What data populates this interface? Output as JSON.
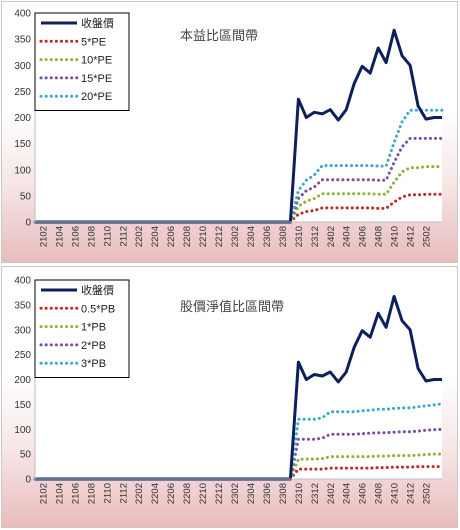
{
  "charts": [
    {
      "title": "本益比區間帶",
      "type": "line",
      "ylim": [
        0,
        400
      ],
      "yticks": [
        0,
        50,
        100,
        150,
        200,
        250,
        300,
        350,
        400
      ],
      "xticks": [
        "2102",
        "2104",
        "2106",
        "2108",
        "2110",
        "2112",
        "2202",
        "2204",
        "2206",
        "2208",
        "2210",
        "2212",
        "2302",
        "2304",
        "2306",
        "2308",
        "2310",
        "2312",
        "2402",
        "2404",
        "2406",
        "2408",
        "2410",
        "2412",
        "2502"
      ],
      "x": [
        "2101",
        "2102",
        "2103",
        "2104",
        "2105",
        "2106",
        "2107",
        "2108",
        "2109",
        "2110",
        "2111",
        "2112",
        "2201",
        "2202",
        "2203",
        "2204",
        "2205",
        "2206",
        "2207",
        "2208",
        "2209",
        "2210",
        "2211",
        "2212",
        "2301",
        "2302",
        "2303",
        "2304",
        "2305",
        "2306",
        "2307",
        "2308",
        "2309",
        "2310",
        "2311",
        "2312",
        "2401",
        "2402",
        "2403",
        "2404",
        "2405",
        "2406",
        "2407",
        "2408",
        "2409",
        "2410",
        "2411",
        "2412",
        "2501",
        "2502",
        "2503",
        "2504"
      ],
      "series": [
        {
          "name": "收盤價",
          "color": "#0d1f5c",
          "style": "solid",
          "values": [
            0,
            0,
            0,
            0,
            0,
            0,
            0,
            0,
            0,
            0,
            0,
            0,
            0,
            0,
            0,
            0,
            0,
            0,
            0,
            0,
            0,
            0,
            0,
            0,
            0,
            0,
            0,
            0,
            0,
            0,
            0,
            0,
            0,
            235,
            200,
            210,
            207,
            215,
            195,
            215,
            265,
            298,
            285,
            333,
            305,
            367,
            318,
            300,
            222,
            197,
            200,
            200
          ]
        },
        {
          "name": "5*PE",
          "color": "#c0282c",
          "style": "dotted",
          "values": [
            0,
            0,
            0,
            0,
            0,
            0,
            0,
            0,
            0,
            0,
            0,
            0,
            0,
            0,
            0,
            0,
            0,
            0,
            0,
            0,
            0,
            0,
            0,
            0,
            0,
            0,
            0,
            0,
            0,
            0,
            0,
            0,
            0,
            15,
            20,
            22,
            27,
            27,
            27,
            27,
            27,
            27,
            27,
            26,
            26,
            38,
            48,
            52,
            52,
            53,
            53,
            53
          ]
        },
        {
          "name": "10*PE",
          "color": "#8cb43c",
          "style": "dotted",
          "values": [
            0,
            0,
            0,
            0,
            0,
            0,
            0,
            0,
            0,
            0,
            0,
            0,
            0,
            0,
            0,
            0,
            0,
            0,
            0,
            0,
            0,
            0,
            0,
            0,
            0,
            0,
            0,
            0,
            0,
            0,
            0,
            0,
            0,
            30,
            40,
            45,
            54,
            54,
            54,
            54,
            54,
            54,
            54,
            53,
            53,
            76,
            96,
            104,
            104,
            106,
            106,
            106
          ]
        },
        {
          "name": "15*PE",
          "color": "#7a4ea0",
          "style": "dotted",
          "values": [
            0,
            0,
            0,
            0,
            0,
            0,
            0,
            0,
            0,
            0,
            0,
            0,
            0,
            0,
            0,
            0,
            0,
            0,
            0,
            0,
            0,
            0,
            0,
            0,
            0,
            0,
            0,
            0,
            0,
            0,
            0,
            0,
            0,
            45,
            60,
            67,
            81,
            81,
            81,
            81,
            81,
            81,
            81,
            80,
            80,
            114,
            144,
            160,
            160,
            160,
            160,
            160
          ]
        },
        {
          "name": "20*PE",
          "color": "#3aa8c8",
          "style": "dotted",
          "values": [
            0,
            0,
            0,
            0,
            0,
            0,
            0,
            0,
            0,
            0,
            0,
            0,
            0,
            0,
            0,
            0,
            0,
            0,
            0,
            0,
            0,
            0,
            0,
            0,
            0,
            0,
            0,
            0,
            0,
            0,
            0,
            0,
            0,
            60,
            80,
            90,
            108,
            108,
            108,
            108,
            108,
            108,
            108,
            107,
            107,
            152,
            192,
            214,
            214,
            214,
            214,
            214
          ]
        }
      ]
    },
    {
      "title": "股價淨值比區間帶",
      "type": "line",
      "ylim": [
        0,
        400
      ],
      "yticks": [
        0,
        50,
        100,
        150,
        200,
        250,
        300,
        350,
        400
      ],
      "xticks": [
        "2102",
        "2104",
        "2106",
        "2108",
        "2110",
        "2112",
        "2202",
        "2204",
        "2206",
        "2208",
        "2210",
        "2212",
        "2302",
        "2304",
        "2306",
        "2308",
        "2310",
        "2312",
        "2402",
        "2404",
        "2406",
        "2408",
        "2410",
        "2412",
        "2502"
      ],
      "x": [
        "2101",
        "2102",
        "2103",
        "2104",
        "2105",
        "2106",
        "2107",
        "2108",
        "2109",
        "2110",
        "2111",
        "2112",
        "2201",
        "2202",
        "2203",
        "2204",
        "2205",
        "2206",
        "2207",
        "2208",
        "2209",
        "2210",
        "2211",
        "2212",
        "2301",
        "2302",
        "2303",
        "2304",
        "2305",
        "2306",
        "2307",
        "2308",
        "2309",
        "2310",
        "2311",
        "2312",
        "2401",
        "2402",
        "2403",
        "2404",
        "2405",
        "2406",
        "2407",
        "2408",
        "2409",
        "2410",
        "2411",
        "2412",
        "2501",
        "2502",
        "2503",
        "2504"
      ],
      "series": [
        {
          "name": "收盤價",
          "color": "#0d1f5c",
          "style": "solid",
          "values": [
            0,
            0,
            0,
            0,
            0,
            0,
            0,
            0,
            0,
            0,
            0,
            0,
            0,
            0,
            0,
            0,
            0,
            0,
            0,
            0,
            0,
            0,
            0,
            0,
            0,
            0,
            0,
            0,
            0,
            0,
            0,
            0,
            0,
            235,
            200,
            210,
            207,
            215,
            195,
            215,
            265,
            298,
            285,
            333,
            305,
            367,
            318,
            300,
            222,
            197,
            200,
            200
          ]
        },
        {
          "name": "0.5*PB",
          "color": "#c0282c",
          "style": "dotted",
          "values": [
            0,
            0,
            0,
            0,
            0,
            0,
            0,
            0,
            0,
            0,
            0,
            0,
            0,
            0,
            0,
            0,
            0,
            0,
            0,
            0,
            0,
            0,
            0,
            0,
            0,
            0,
            0,
            0,
            0,
            0,
            0,
            0,
            0,
            20,
            20,
            20,
            20,
            22,
            22,
            22,
            22,
            22,
            22,
            23,
            23,
            24,
            24,
            24,
            25,
            25,
            25,
            25
          ]
        },
        {
          "name": "1*PB",
          "color": "#8cb43c",
          "style": "dotted",
          "values": [
            0,
            0,
            0,
            0,
            0,
            0,
            0,
            0,
            0,
            0,
            0,
            0,
            0,
            0,
            0,
            0,
            0,
            0,
            0,
            0,
            0,
            0,
            0,
            0,
            0,
            0,
            0,
            0,
            0,
            0,
            0,
            0,
            0,
            40,
            40,
            40,
            41,
            45,
            45,
            45,
            45,
            45,
            45,
            46,
            46,
            47,
            47,
            47,
            48,
            49,
            50,
            50
          ]
        },
        {
          "name": "2*PB",
          "color": "#7a4ea0",
          "style": "dotted",
          "values": [
            0,
            0,
            0,
            0,
            0,
            0,
            0,
            0,
            0,
            0,
            0,
            0,
            0,
            0,
            0,
            0,
            0,
            0,
            0,
            0,
            0,
            0,
            0,
            0,
            0,
            0,
            0,
            0,
            0,
            0,
            0,
            0,
            0,
            80,
            80,
            80,
            82,
            90,
            90,
            90,
            90,
            91,
            92,
            93,
            93,
            94,
            95,
            95,
            96,
            98,
            99,
            100
          ]
        },
        {
          "name": "3*PB",
          "color": "#3aa8c8",
          "style": "dotted",
          "values": [
            0,
            0,
            0,
            0,
            0,
            0,
            0,
            0,
            0,
            0,
            0,
            0,
            0,
            0,
            0,
            0,
            0,
            0,
            0,
            0,
            0,
            0,
            0,
            0,
            0,
            0,
            0,
            0,
            0,
            0,
            0,
            0,
            0,
            120,
            120,
            120,
            123,
            135,
            135,
            135,
            135,
            137,
            138,
            140,
            140,
            142,
            143,
            143,
            145,
            147,
            149,
            151
          ]
        }
      ]
    }
  ]
}
